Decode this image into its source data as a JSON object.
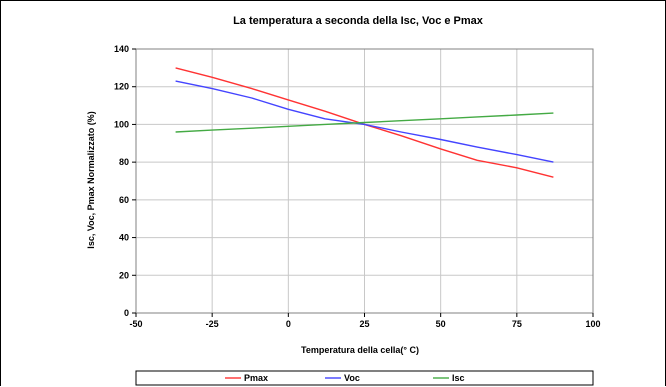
{
  "chart_data": {
    "type": "line",
    "title": "La temperatura a seconda della Isc, Voc e Pmax",
    "xlabel": "Temperatura della cella(° C)",
    "ylabel": "Isc, Voc, Pmax Normalizzato (%)",
    "xlim": [
      -50,
      100
    ],
    "ylim": [
      0,
      140
    ],
    "xticks": [
      -50,
      -25,
      0,
      25,
      50,
      75,
      100
    ],
    "yticks": [
      0,
      20,
      40,
      60,
      80,
      100,
      120,
      140
    ],
    "grid": true,
    "legend_position": "bottom",
    "series": [
      {
        "name": "Pmax",
        "color": "#ff3333",
        "x": [
          -37,
          -25,
          -12,
          0,
          12,
          25,
          37,
          50,
          62,
          75,
          87
        ],
        "y": [
          130,
          125,
          119,
          113,
          107,
          100,
          94,
          87,
          81,
          77,
          72
        ]
      },
      {
        "name": "Voc",
        "color": "#4444ff",
        "x": [
          -37,
          -25,
          -12,
          0,
          12,
          25,
          37,
          50,
          62,
          75,
          87
        ],
        "y": [
          123,
          119,
          114,
          108,
          103,
          100,
          96,
          92,
          88,
          84,
          80
        ]
      },
      {
        "name": "Isc",
        "color": "#44aa44",
        "x": [
          -37,
          -25,
          -12,
          0,
          12,
          25,
          37,
          50,
          62,
          75,
          87
        ],
        "y": [
          96,
          97,
          98,
          99,
          100,
          101,
          102,
          103,
          104,
          105,
          106
        ]
      }
    ]
  }
}
